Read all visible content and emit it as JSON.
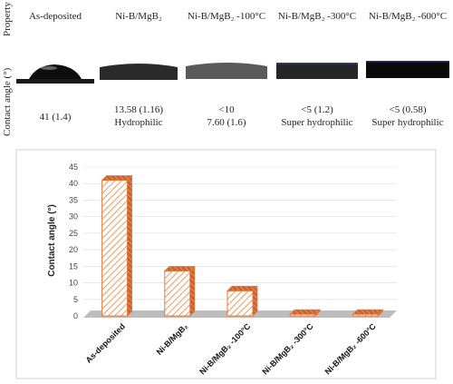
{
  "table": {
    "row_labels": {
      "property": "Property",
      "contact_angle": "Contact angle (°)"
    },
    "samples": [
      {
        "header": "As-deposited",
        "value": "41 (1.4)",
        "note": ""
      },
      {
        "header": "Ni-B/MgB₂",
        "value": "13.58 (1.16)",
        "note": "Hydrophilic"
      },
      {
        "header": "Ni-B/MgB₂ -100°C",
        "value": "<10",
        "note": "7.60 (1.6)"
      },
      {
        "header": "Ni-B/MgB₂ -300°C",
        "value": "<5 (1.2)",
        "note": "Super hydrophilic"
      },
      {
        "header": "Ni-B/MgB₂ -600°C",
        "value": "<5 (0.58)",
        "note": "Super hydrophilic"
      }
    ]
  },
  "colors": {
    "bar_stroke": "#e8793a",
    "bar_hatch": "#f29a5e",
    "floor": "#bdbdbd",
    "grid": "#d9d9d9",
    "droplet": "#111111"
  },
  "chart_data": {
    "type": "bar",
    "categories": [
      "As-deposited",
      "Ni-B/MgB₂",
      "Ni-B/MgB₂ -100°C",
      "Ni-B/MgB₂ -300°C",
      "Ni-B/MgB₂ -600°C"
    ],
    "values": [
      41,
      13.58,
      7.6,
      0.5,
      0.5
    ],
    "ylabel": "Contact angle (°)",
    "xlabel": "",
    "title": "",
    "ylim": [
      0,
      45
    ],
    "yticks": [
      0,
      5,
      10,
      15,
      20,
      25,
      30,
      35,
      40,
      45
    ],
    "grid": true,
    "legend": "none"
  }
}
